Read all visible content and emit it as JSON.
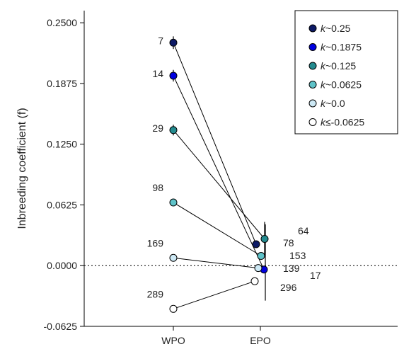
{
  "chart_data": {
    "type": "scatter",
    "ylabel": "Inbreeding coefficient (f)",
    "xlabel": "",
    "categories": [
      "WPO",
      "EPO"
    ],
    "ylim": [
      -0.0625,
      0.2625
    ],
    "yticks": [
      "0.2500",
      "0.1875",
      "0.1250",
      "0.0625",
      "0.0000",
      "-0.0625"
    ],
    "ytick_values": [
      0.25,
      0.1875,
      0.125,
      0.0625,
      0.0,
      -0.0625
    ],
    "reference_line": 0.0,
    "legend_position": "top-right",
    "series": [
      {
        "name": "k~0.25",
        "legend_k": "k",
        "legend_rest": "~0.25",
        "color": "#0d1a66",
        "wpo": {
          "y": 0.2295,
          "err": 0.0065,
          "n": "7"
        },
        "epo": {
          "y": 0.022,
          "err": 0.0,
          "n": "64"
        }
      },
      {
        "name": "k~0.1875",
        "legend_k": "k",
        "legend_rest": "~0.1875",
        "color": "#0000e0",
        "wpo": {
          "y": 0.1955,
          "err": 0.006,
          "n": "14"
        },
        "epo": {
          "y": -0.004,
          "err": 0.0,
          "n": "17"
        }
      },
      {
        "name": "k~0.125",
        "legend_k": "k",
        "legend_rest": "~0.125",
        "color": "#238b8f",
        "wpo": {
          "y": 0.1395,
          "err": 0.0055,
          "n": "29"
        },
        "epo": {
          "y": 0.0275,
          "err": 0.0175,
          "n": "78"
        }
      },
      {
        "name": "k~0.0625",
        "legend_k": "k",
        "legend_rest": "~0.0625",
        "color": "#5ec2c8",
        "wpo": {
          "y": 0.065,
          "err": 0.0,
          "n": "98"
        },
        "epo": {
          "y": 0.01,
          "err": 0.0,
          "n": "153"
        }
      },
      {
        "name": "k~0.0",
        "legend_k": "k",
        "legend_rest": "~0.0",
        "color": "#cde9f5",
        "wpo": {
          "y": 0.008,
          "err": 0.0,
          "n": "169"
        },
        "epo": {
          "y": -0.0025,
          "err": 0.0,
          "n": "139"
        }
      },
      {
        "name": "k≤-0.0625",
        "legend_k": "k",
        "legend_rest": "≤-0.0625",
        "color": "#ffffff",
        "wpo": {
          "y": -0.0445,
          "err": 0.0,
          "n": "289"
        },
        "epo": {
          "y": -0.016,
          "err": 0.0,
          "n": "296"
        }
      }
    ],
    "epo_overall_error": [
      -0.036,
      0.0425
    ]
  }
}
